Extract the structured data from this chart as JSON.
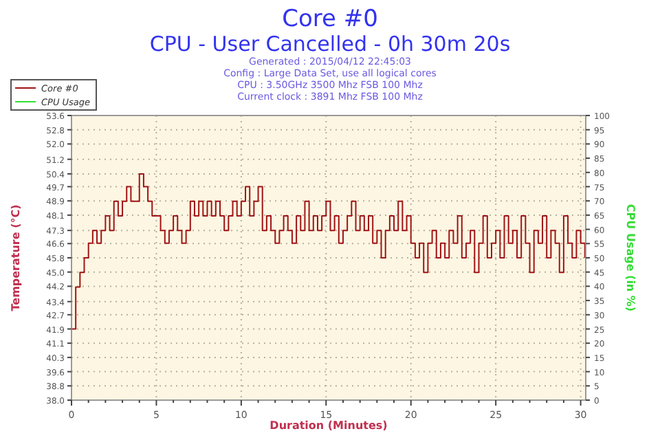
{
  "chart_data": {
    "type": "step",
    "title": "Core #0",
    "subtitle": "CPU - User Cancelled - 0h 30m 20s",
    "annotations": [
      "Generated : 2015/04/12 22:45:03",
      "Config : Large Data Set, use all logical cores",
      "CPU : 3.50GHz 3500 Mhz FSB 100 Mhz",
      "Current clock : 3891 Mhz FSB 100 Mhz"
    ],
    "xlabel": "Duration (Minutes)",
    "ylabel": "Temperature (°C)",
    "y2label": "CPU Usage (in %)",
    "xlim": [
      0,
      30.3
    ],
    "ylim": [
      38,
      53.6
    ],
    "y2lim": [
      0,
      100
    ],
    "xticks": [
      0,
      {
        "value": 1,
        "label": null
      },
      {
        "value": 2,
        "label": null
      },
      {
        "value": 3,
        "label": null
      },
      {
        "value": 4,
        "label": null
      },
      5,
      {
        "value": 6,
        "label": null
      },
      {
        "value": 7,
        "label": null
      },
      {
        "value": 8,
        "label": null
      },
      {
        "value": 9,
        "label": null
      },
      10,
      {
        "value": 11,
        "label": null
      },
      {
        "value": 12,
        "label": null
      },
      {
        "value": 13,
        "label": null
      },
      {
        "value": 14,
        "label": null
      },
      15,
      {
        "value": 16,
        "label": null
      },
      {
        "value": 17,
        "label": null
      },
      {
        "value": 18,
        "label": null
      },
      {
        "value": 19,
        "label": null
      },
      20,
      {
        "value": 21,
        "label": null
      },
      {
        "value": 22,
        "label": null
      },
      {
        "value": 23,
        "label": null
      },
      {
        "value": 24,
        "label": null
      },
      25,
      {
        "value": 26,
        "label": null
      },
      {
        "value": 27,
        "label": null
      },
      {
        "value": 28,
        "label": null
      },
      {
        "value": 29,
        "label": null
      },
      30
    ],
    "yticks": [
      {
        "value": 38,
        "label": "38.0"
      },
      {
        "value": 38.78,
        "label": "38.8"
      },
      {
        "value": 39.56,
        "label": "39.6"
      },
      {
        "value": 40.34,
        "label": "40.3"
      },
      {
        "value": 41.12,
        "label": "41.1"
      },
      {
        "value": 41.9,
        "label": "41.9"
      },
      {
        "value": 42.68,
        "label": "42.7"
      },
      {
        "value": 43.4,
        "label": "43.4"
      },
      {
        "value": 44.24,
        "label": "44.2"
      },
      {
        "value": 45.02,
        "label": "45.0"
      },
      {
        "value": 45.8,
        "label": "45.8"
      },
      {
        "value": 46.58,
        "label": "46.6"
      },
      {
        "value": 47.3,
        "label": "47.3"
      },
      {
        "value": 48.14,
        "label": "48.1"
      },
      {
        "value": 48.92,
        "label": "48.9"
      },
      {
        "value": 49.7,
        "label": "49.7"
      },
      {
        "value": 50.4,
        "label": "50.4"
      },
      {
        "value": 51.2,
        "label": "51.2"
      },
      {
        "value": 52.04,
        "label": "52.0"
      },
      {
        "value": 52.82,
        "label": "52.8"
      },
      {
        "value": 53.6,
        "label": "53.6"
      }
    ],
    "y2ticks": [
      0,
      5,
      10,
      15,
      20,
      25,
      30,
      35,
      40,
      45,
      50,
      55,
      60,
      65,
      70,
      75,
      80,
      85,
      90,
      95,
      100
    ],
    "grid": true,
    "legend": "top left",
    "series": [
      {
        "name": "Core #0",
        "color": "#a01414",
        "x": [
          0,
          0.25,
          0.5,
          0.75,
          1,
          1.25,
          1.5,
          1.75,
          2,
          2.25,
          2.5,
          2.75,
          3,
          3.25,
          3.5,
          3.75,
          4,
          4.25,
          4.5,
          4.75,
          5,
          5.25,
          5.5,
          5.75,
          6,
          6.25,
          6.5,
          6.75,
          7,
          7.25,
          7.5,
          7.75,
          8,
          8.25,
          8.5,
          8.75,
          9,
          9.25,
          9.5,
          9.75,
          10,
          10.25,
          10.5,
          10.75,
          11,
          11.25,
          11.5,
          11.75,
          12,
          12.25,
          12.5,
          12.75,
          13,
          13.25,
          13.5,
          13.75,
          14,
          14.25,
          14.5,
          14.75,
          15,
          15.25,
          15.5,
          15.75,
          16,
          16.25,
          16.5,
          16.75,
          17,
          17.25,
          17.5,
          17.75,
          18,
          18.25,
          18.5,
          18.75,
          19,
          19.25,
          19.5,
          19.75,
          20,
          20.25,
          20.5,
          20.75,
          21,
          21.25,
          21.5,
          21.75,
          22,
          22.25,
          22.5,
          22.75,
          23,
          23.25,
          23.5,
          23.75,
          24,
          24.25,
          24.5,
          24.75,
          25,
          25.25,
          25.5,
          25.75,
          26,
          26.25,
          26.5,
          26.75,
          27,
          27.25,
          27.5,
          27.75,
          28,
          28.25,
          28.5,
          28.75,
          29,
          29.25,
          29.5,
          29.75,
          30,
          30.25
        ],
        "values": [
          41.9,
          44.2,
          45.0,
          45.8,
          46.6,
          47.3,
          46.6,
          47.3,
          48.1,
          47.3,
          48.9,
          48.1,
          48.9,
          49.7,
          48.9,
          48.9,
          50.4,
          49.7,
          48.9,
          48.1,
          48.1,
          47.3,
          46.6,
          47.3,
          48.1,
          47.3,
          46.6,
          47.3,
          48.9,
          48.1,
          48.9,
          48.1,
          48.9,
          48.1,
          48.9,
          48.1,
          47.3,
          48.1,
          48.9,
          48.1,
          48.9,
          49.7,
          48.1,
          48.9,
          49.7,
          47.3,
          48.1,
          47.3,
          46.6,
          47.3,
          48.1,
          47.3,
          46.6,
          48.1,
          47.3,
          48.9,
          47.3,
          48.1,
          47.3,
          48.1,
          48.9,
          47.3,
          48.1,
          46.6,
          47.3,
          48.1,
          48.9,
          47.3,
          48.1,
          47.3,
          48.1,
          46.6,
          47.3,
          45.8,
          47.3,
          48.1,
          47.3,
          48.9,
          47.3,
          48.1,
          46.6,
          45.8,
          46.6,
          45.0,
          46.6,
          47.3,
          45.8,
          46.6,
          45.8,
          47.3,
          46.6,
          48.1,
          45.8,
          46.6,
          47.3,
          45.0,
          46.6,
          48.1,
          45.8,
          46.6,
          47.3,
          45.8,
          48.1,
          46.6,
          47.3,
          45.8,
          48.1,
          46.6,
          45.0,
          47.3,
          46.6,
          48.1,
          45.8,
          47.3,
          46.6,
          45.0,
          48.1,
          46.6,
          45.8,
          47.3,
          46.6,
          45.8
        ]
      },
      {
        "name": "CPU Usage",
        "color": "#33dd33"
      }
    ]
  }
}
